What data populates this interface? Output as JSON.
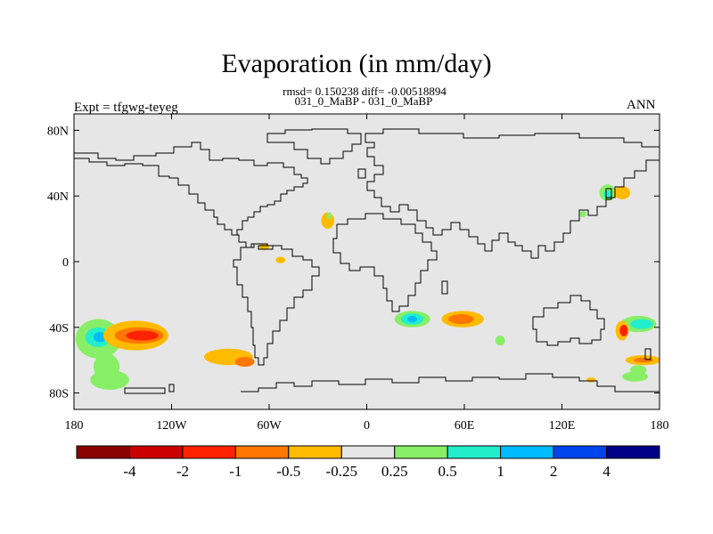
{
  "header": {
    "title": "Evaporation (in mm/day)",
    "stats_line": "rmsd= 0.150238 diff= -0.00518894",
    "subtitle": "031_0_MaBP - 031_0_MaBP",
    "left_label": "Expt = tfgwg-teyeg",
    "right_label": "ANN"
  },
  "colors": {
    "land_fill": "#e6e6e6",
    "coast": "#000000",
    "levels": [
      "#8b0000",
      "#cc0000",
      "#ff2200",
      "#ff7700",
      "#ffbb00",
      "#e6e6e6",
      "#88ee66",
      "#22eecc",
      "#00bbff",
      "#0044ee",
      "#000088"
    ]
  },
  "chart_data": {
    "type": "heatmap",
    "projection": "cylindrical equidistant",
    "x_ticks": [
      {
        "value": -180,
        "label": "180"
      },
      {
        "value": -120,
        "label": "120W"
      },
      {
        "value": -60,
        "label": "60W"
      },
      {
        "value": 0,
        "label": "0"
      },
      {
        "value": 60,
        "label": "60E"
      },
      {
        "value": 120,
        "label": "120E"
      },
      {
        "value": 180,
        "label": "180"
      }
    ],
    "y_ticks": [
      {
        "value": 80,
        "label": "80N"
      },
      {
        "value": 40,
        "label": "40N"
      },
      {
        "value": 0,
        "label": "0"
      },
      {
        "value": -40,
        "label": "40S"
      },
      {
        "value": -80,
        "label": "80S"
      }
    ],
    "xlim": [
      -180,
      180
    ],
    "ylim": [
      -90,
      90
    ],
    "colorbar": {
      "labels": [
        "-4",
        "-2",
        "-1",
        "-0.5",
        "-0.25",
        "0.25",
        "0.5",
        "1",
        "2",
        "4"
      ],
      "bins": 11
    },
    "features": [
      {
        "lon": -165,
        "lat": -47,
        "rlon": 14,
        "rlat": 12,
        "level": 6
      },
      {
        "lon": -165,
        "lat": -46,
        "rlon": 8,
        "rlat": 6,
        "level": 7
      },
      {
        "lon": -164,
        "lat": -46,
        "rlon": 4,
        "rlat": 3,
        "level": 8
      },
      {
        "lon": -158,
        "lat": -72,
        "rlon": 12,
        "rlat": 6,
        "level": 6
      },
      {
        "lon": -160,
        "lat": -64,
        "rlon": 8,
        "rlat": 8,
        "level": 6
      },
      {
        "lon": -142,
        "lat": -45,
        "rlon": 20,
        "rlat": 9,
        "level": 4
      },
      {
        "lon": -140,
        "lat": -45,
        "rlon": 15,
        "rlat": 5,
        "level": 3
      },
      {
        "lon": -138,
        "lat": -45,
        "rlon": 10,
        "rlat": 3,
        "level": 2
      },
      {
        "lon": -85,
        "lat": -58,
        "rlon": 15,
        "rlat": 5,
        "level": 4
      },
      {
        "lon": -75,
        "lat": -61,
        "rlon": 6,
        "rlat": 3,
        "level": 3
      },
      {
        "lon": -24,
        "lat": 25,
        "rlon": 4,
        "rlat": 5,
        "level": 4
      },
      {
        "lon": -23,
        "lat": 28,
        "rlon": 1.5,
        "rlat": 2,
        "level": 6
      },
      {
        "lon": -63,
        "lat": 9,
        "rlon": 3,
        "rlat": 2,
        "level": 4
      },
      {
        "lon": -53,
        "lat": 1,
        "rlon": 3,
        "rlat": 2,
        "level": 4
      },
      {
        "lon": 28,
        "lat": -35,
        "rlon": 11,
        "rlat": 5,
        "level": 6
      },
      {
        "lon": 28,
        "lat": -35,
        "rlon": 7,
        "rlat": 3.5,
        "level": 7
      },
      {
        "lon": 28,
        "lat": -35,
        "rlon": 3,
        "rlat": 2,
        "level": 8
      },
      {
        "lon": 59,
        "lat": -35,
        "rlon": 13,
        "rlat": 5,
        "level": 4
      },
      {
        "lon": 58,
        "lat": -35,
        "rlon": 8,
        "rlat": 3,
        "level": 3
      },
      {
        "lon": 82,
        "lat": -48,
        "rlon": 3,
        "rlat": 3,
        "level": 6
      },
      {
        "lon": 148,
        "lat": 42,
        "rlon": 5,
        "rlat": 5,
        "level": 6
      },
      {
        "lon": 157,
        "lat": 42,
        "rlon": 5,
        "rlat": 4,
        "level": 4
      },
      {
        "lon": 148,
        "lat": 41,
        "rlon": 2.5,
        "rlat": 2.5,
        "level": 7
      },
      {
        "lon": 133,
        "lat": 29,
        "rlon": 2,
        "rlat": 2,
        "level": 6
      },
      {
        "lon": 167,
        "lat": -38,
        "rlon": 11,
        "rlat": 5,
        "level": 6
      },
      {
        "lon": 169,
        "lat": -38,
        "rlon": 7,
        "rlat": 3,
        "level": 7
      },
      {
        "lon": 157,
        "lat": -42,
        "rlon": 4,
        "rlat": 6,
        "level": 4
      },
      {
        "lon": 158,
        "lat": -42,
        "rlon": 2.5,
        "rlat": 3.5,
        "level": 2
      },
      {
        "lon": 170,
        "lat": -60,
        "rlon": 11,
        "rlat": 3,
        "level": 4
      },
      {
        "lon": 170,
        "lat": -60,
        "rlon": 6,
        "rlat": 1.5,
        "level": 3
      },
      {
        "lon": 165,
        "lat": -70,
        "rlon": 8,
        "rlat": 3,
        "level": 6
      },
      {
        "lon": 167,
        "lat": -66,
        "rlon": 5,
        "rlat": 3,
        "level": 6
      },
      {
        "lon": 138,
        "lat": -72,
        "rlon": 3,
        "rlat": 1.5,
        "level": 4
      }
    ]
  }
}
